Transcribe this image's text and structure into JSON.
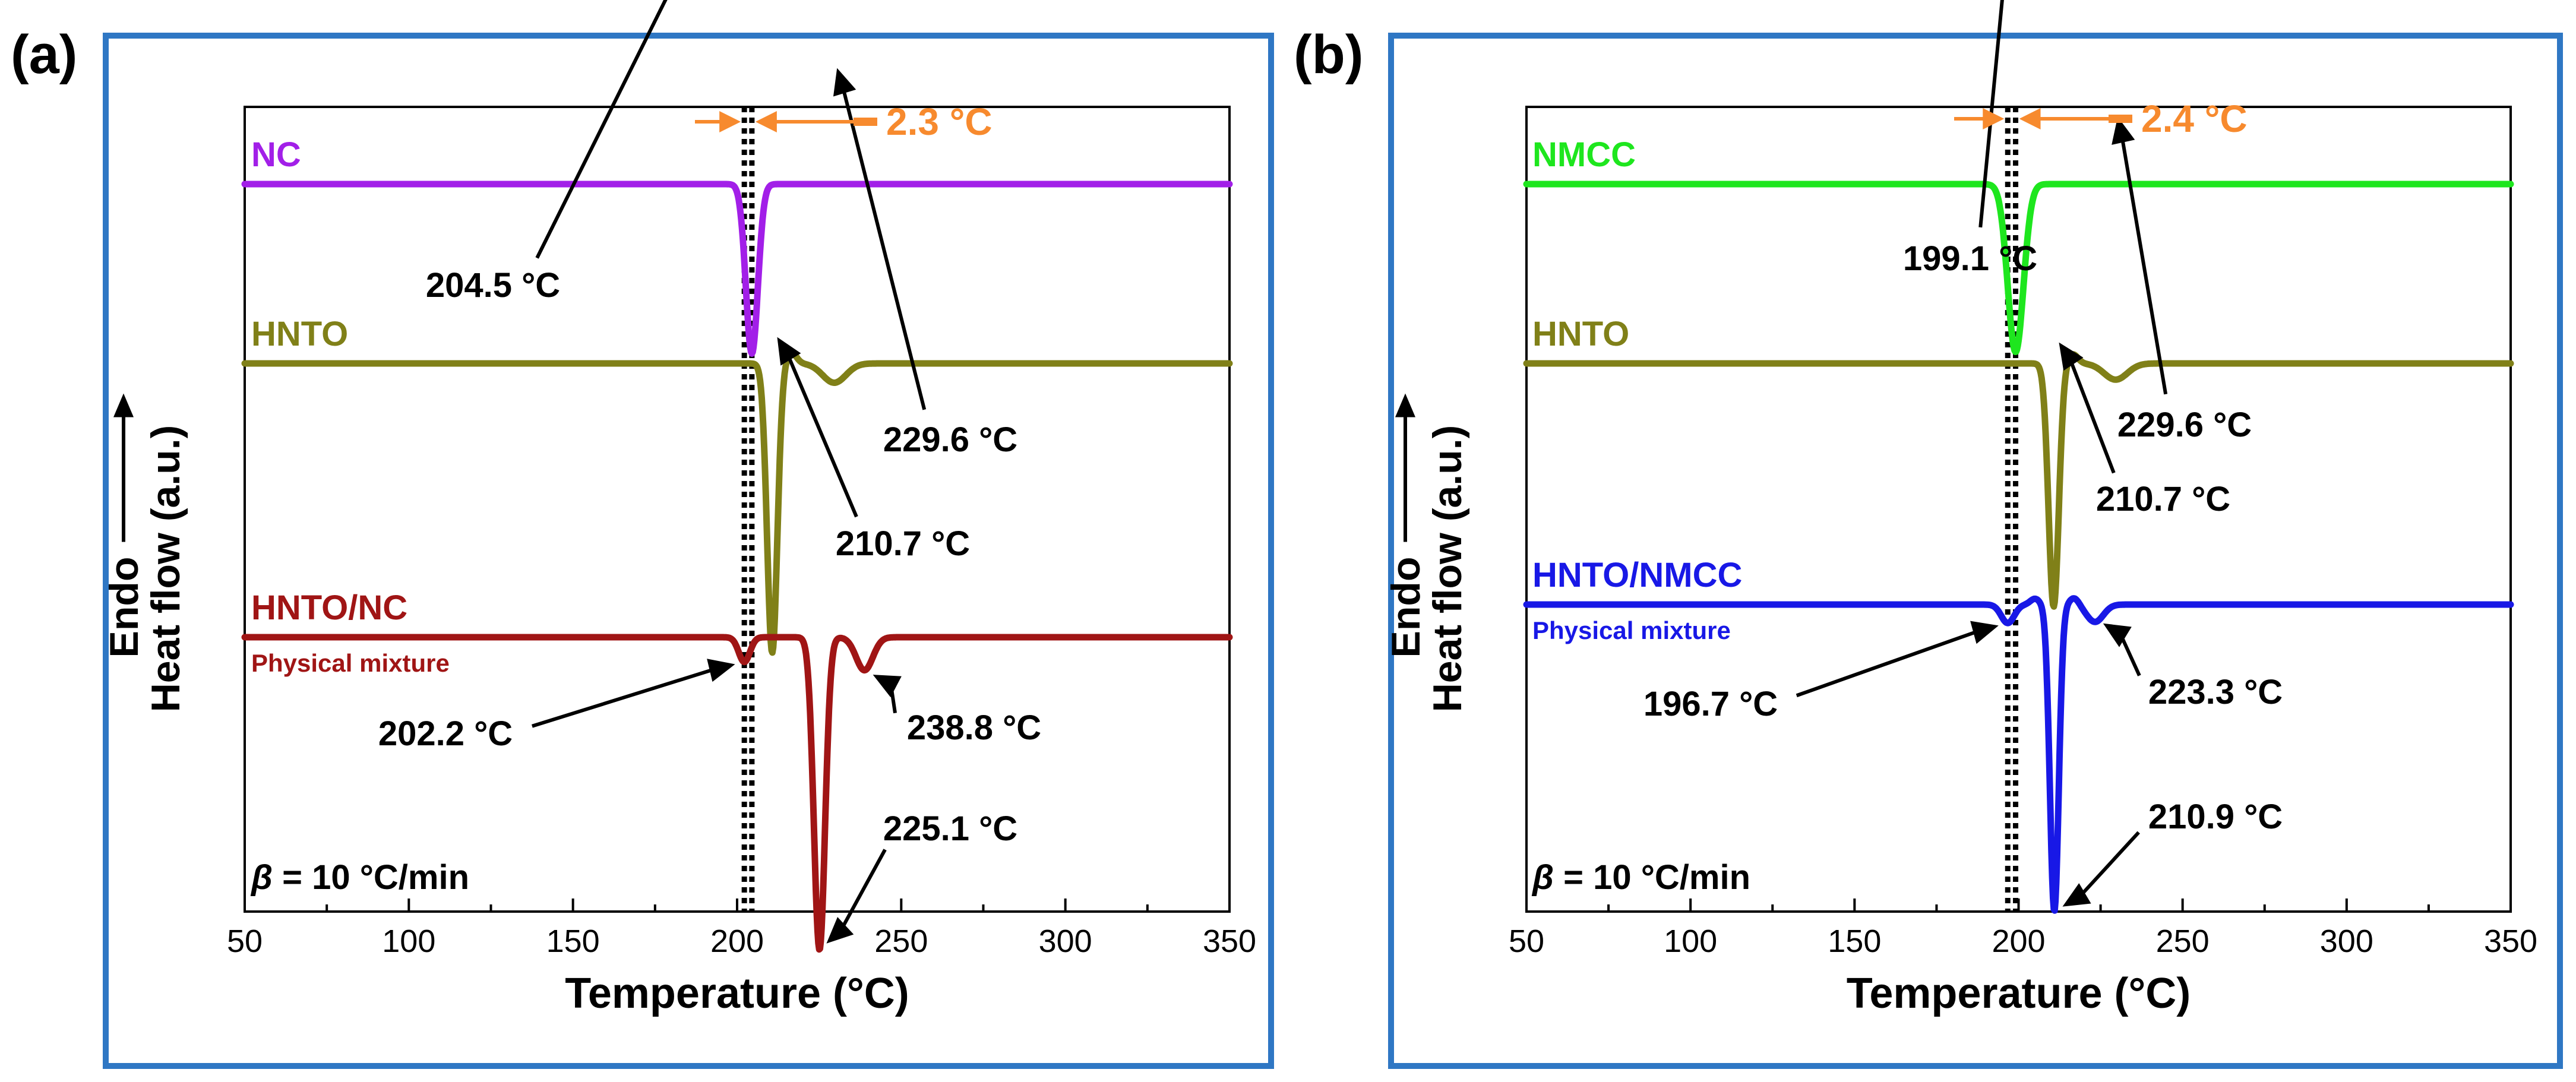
{
  "chart_data": [
    {
      "type": "line",
      "panel_label": "(a)",
      "xlabel": "Temperature (°C)",
      "ylabel": "Heat flow (a.u.)",
      "endo_label": "Endo",
      "xlim": [
        50,
        350
      ],
      "xticks": [
        "50",
        "100",
        "150",
        "200",
        "250",
        "300",
        "350"
      ],
      "rate_symbol": "β",
      "rate_text": "= 10 °C/min",
      "shift_text": "2.3 °C",
      "dotted_lines_x": [
        202.2,
        204.5
      ],
      "series": [
        {
          "name": "NC",
          "color": "#a21fe8",
          "baseline": 3.8,
          "peaks": [
            {
              "x": 204.5,
              "depth": 1.23,
              "width": 2.6
            }
          ]
        },
        {
          "name": "HNTO",
          "color": "#808018",
          "baseline": 2.35,
          "peaks": [
            {
              "x": 210.7,
              "depth": 2.1,
              "width": 2.2
            },
            {
              "x": 216.5,
              "depth": -0.08,
              "width": 2.2
            },
            {
              "x": 229.6,
              "depth": 0.14,
              "width": 5.0
            }
          ]
        },
        {
          "name": "HNTO/NC",
          "subtitle": "Physical mixture",
          "color": "#a01515",
          "baseline": 0.0,
          "peaks": [
            {
              "x": 202.2,
              "depth": 0.18,
              "width": 2.4
            },
            {
              "x": 225.1,
              "depth": 2.27,
              "width": 2.4
            },
            {
              "x": 238.8,
              "depth": 0.24,
              "width": 3.6
            }
          ]
        }
      ],
      "annotations": [
        {
          "text": "204.5 °C",
          "x": 204.5,
          "y": 2.57
        },
        {
          "text": "229.6 °C",
          "x": 229.6,
          "y": 2.21
        },
        {
          "text": "210.7 °C",
          "x": 210.7,
          "y": 0.25
        },
        {
          "text": "202.2 °C",
          "x": 202.2,
          "y": -0.18
        },
        {
          "text": "238.8 °C",
          "x": 238.8,
          "y": -0.24
        },
        {
          "text": "225.1 °C",
          "x": 225.1,
          "y": -2.27
        }
      ]
    },
    {
      "type": "line",
      "panel_label": "(b)",
      "xlabel": "Temperature (°C)",
      "ylabel": "Heat flow (a.u.)",
      "endo_label": "Endo",
      "xlim": [
        50,
        350
      ],
      "xticks": [
        "50",
        "100",
        "150",
        "200",
        "250",
        "300",
        "350"
      ],
      "rate_symbol": "β",
      "rate_text": "= 10 °C/min",
      "shift_text": "2.4 °C",
      "dotted_lines_x": [
        196.7,
        199.1
      ],
      "series": [
        {
          "name": "NMCC",
          "color": "#1ee61e",
          "baseline": 4.2,
          "peaks": [
            {
              "x": 199.1,
              "depth": 1.45,
              "width": 3.4
            }
          ]
        },
        {
          "name": "HNTO",
          "color": "#808018",
          "baseline": 2.35,
          "peaks": [
            {
              "x": 210.7,
              "depth": 2.1,
              "width": 2.2
            },
            {
              "x": 216.5,
              "depth": -0.08,
              "width": 2.2
            },
            {
              "x": 229.6,
              "depth": 0.14,
              "width": 5.0
            }
          ]
        },
        {
          "name": "HNTO/NMCC",
          "subtitle": "Physical mixture",
          "color": "#1818e6",
          "baseline": 0.0,
          "peaks": [
            {
              "x": 196.7,
              "depth": 0.16,
              "width": 2.8
            },
            {
              "x": 210.9,
              "depth": 2.65,
              "width": 1.9
            },
            {
              "x": 223.3,
              "depth": 0.15,
              "width": 3.6
            },
            {
              "x": 205.0,
              "depth": -0.05,
              "width": 2.0
            },
            {
              "x": 217.0,
              "depth": -0.06,
              "width": 2.0
            }
          ]
        }
      ],
      "annotations": [
        {
          "text": "199.1 °C",
          "x": 199.1,
          "y": 2.75
        },
        {
          "text": "229.6 °C",
          "x": 229.6,
          "y": 2.21
        },
        {
          "text": "210.7 °C",
          "x": 210.7,
          "y": 0.25
        },
        {
          "text": "196.7 °C",
          "x": 196.7,
          "y": -0.16
        },
        {
          "text": "223.3 °C",
          "x": 223.3,
          "y": -0.12
        },
        {
          "text": "210.9 °C",
          "x": 210.9,
          "y": -2.65
        }
      ]
    }
  ]
}
